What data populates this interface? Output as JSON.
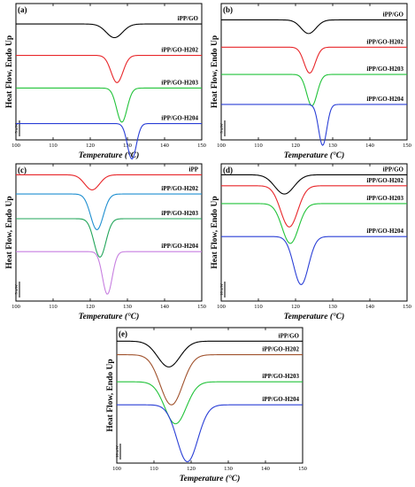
{
  "chart_data": [
    {
      "type": "line",
      "panel": "(a)",
      "xlabel": "Temperature (°C)",
      "ylabel": "Heat Flow, Endo Up",
      "xlim": [
        100,
        150
      ],
      "xticks": [
        100,
        110,
        120,
        130,
        140,
        150
      ],
      "scale_bar": "5 mW",
      "grid": false,
      "series": [
        {
          "name": "iPP/GO",
          "color": "#000000",
          "baseline": 8.5,
          "peak_x": 126.5,
          "depth": 1.0,
          "width": 2.2
        },
        {
          "name": "iPP/GO-H202",
          "color": "#e8262a",
          "baseline": 6.2,
          "peak_x": 127.2,
          "depth": 2.0,
          "width": 1.6
        },
        {
          "name": "iPP/GO-H203",
          "color": "#22c33a",
          "baseline": 3.8,
          "peak_x": 128.5,
          "depth": 2.5,
          "width": 1.4
        },
        {
          "name": "iPP/GO-H204",
          "color": "#2a3fd6",
          "baseline": 1.2,
          "peak_x": 131.2,
          "depth": 2.6,
          "width": 1.2
        }
      ]
    },
    {
      "type": "line",
      "panel": "(b)",
      "xlabel": "Temperature (°C)",
      "ylabel": "Heat Flow, Endo Up",
      "xlim": [
        100,
        150
      ],
      "xticks": [
        100,
        110,
        120,
        130,
        140,
        150
      ],
      "scale_bar": "5 mW",
      "grid": false,
      "series": [
        {
          "name": "iPP/GO",
          "color": "#000000",
          "baseline": 8.8,
          "peak_x": 123.5,
          "depth": 1.0,
          "width": 2.0
        },
        {
          "name": "iPP/GO-H202",
          "color": "#e8262a",
          "baseline": 6.8,
          "peak_x": 123.8,
          "depth": 1.9,
          "width": 1.5
        },
        {
          "name": "iPP/GO-H203",
          "color": "#22c33a",
          "baseline": 4.8,
          "peak_x": 124.4,
          "depth": 2.3,
          "width": 1.4
        },
        {
          "name": "iPP/GO-H204",
          "color": "#2a3fd6",
          "baseline": 2.6,
          "peak_x": 127.3,
          "depth": 3.0,
          "width": 1.1
        }
      ]
    },
    {
      "type": "line",
      "panel": "(c)",
      "xlabel": "Temperature (°C)",
      "ylabel": "Heat Flow, Endo Up",
      "xlim": [
        100,
        150
      ],
      "xticks": [
        100,
        110,
        120,
        130,
        140,
        150
      ],
      "scale_bar": "5 mW",
      "grid": false,
      "series": [
        {
          "name": "iPP",
          "color": "#e8262a",
          "baseline": 9.2,
          "peak_x": 120.5,
          "depth": 1.1,
          "width": 2.0
        },
        {
          "name": "iPP/GO-H202",
          "color": "#1f8fd0",
          "baseline": 7.8,
          "peak_x": 121.8,
          "depth": 2.6,
          "width": 1.7
        },
        {
          "name": "iPP/GO-H203",
          "color": "#22a55a",
          "baseline": 6.0,
          "peak_x": 122.6,
          "depth": 2.8,
          "width": 1.6
        },
        {
          "name": "iPP/GO-H204",
          "color": "#c77fe0",
          "baseline": 3.6,
          "peak_x": 124.6,
          "depth": 3.1,
          "width": 1.3
        }
      ]
    },
    {
      "type": "line",
      "panel": "(d)",
      "xlabel": "Temperature (°C)",
      "ylabel": "Heat Flow, Endo Up",
      "xlim": [
        100,
        150
      ],
      "xticks": [
        100,
        110,
        120,
        130,
        140,
        150
      ],
      "scale_bar": "10 mW",
      "grid": false,
      "series": [
        {
          "name": "iPP/GO",
          "color": "#000000",
          "baseline": 9.2,
          "peak_x": 117.0,
          "depth": 1.4,
          "width": 2.6
        },
        {
          "name": "iPP/GO-H202",
          "color": "#e8262a",
          "baseline": 8.4,
          "peak_x": 118.3,
          "depth": 3.0,
          "width": 2.3
        },
        {
          "name": "iPP/GO-H203",
          "color": "#22c33a",
          "baseline": 7.1,
          "peak_x": 118.6,
          "depth": 2.9,
          "width": 2.2
        },
        {
          "name": "iPP/GO-H204",
          "color": "#2a3fd6",
          "baseline": 4.7,
          "peak_x": 121.5,
          "depth": 3.5,
          "width": 2.0
        }
      ]
    },
    {
      "type": "line",
      "panel": "(e)",
      "xlabel": "Temperature (°C)",
      "ylabel": "Heat Flow, Endo Up",
      "xlim": [
        100,
        150
      ],
      "xticks": [
        100,
        110,
        120,
        130,
        140,
        150
      ],
      "scale_bar": "10 mW",
      "grid": false,
      "series": [
        {
          "name": "iPP/GO",
          "color": "#000000",
          "baseline": 9.0,
          "peak_x": 114.0,
          "depth": 1.9,
          "width": 3.0
        },
        {
          "name": "iPP/GO-H202",
          "color": "#a0522d",
          "baseline": 8.0,
          "peak_x": 114.7,
          "depth": 3.7,
          "width": 3.0
        },
        {
          "name": "iPP/GO-H203",
          "color": "#22c33a",
          "baseline": 6.0,
          "peak_x": 115.8,
          "depth": 3.1,
          "width": 2.9
        },
        {
          "name": "iPP/GO-H204",
          "color": "#2a3fd6",
          "baseline": 4.3,
          "peak_x": 119.0,
          "depth": 4.2,
          "width": 2.8
        }
      ]
    }
  ]
}
